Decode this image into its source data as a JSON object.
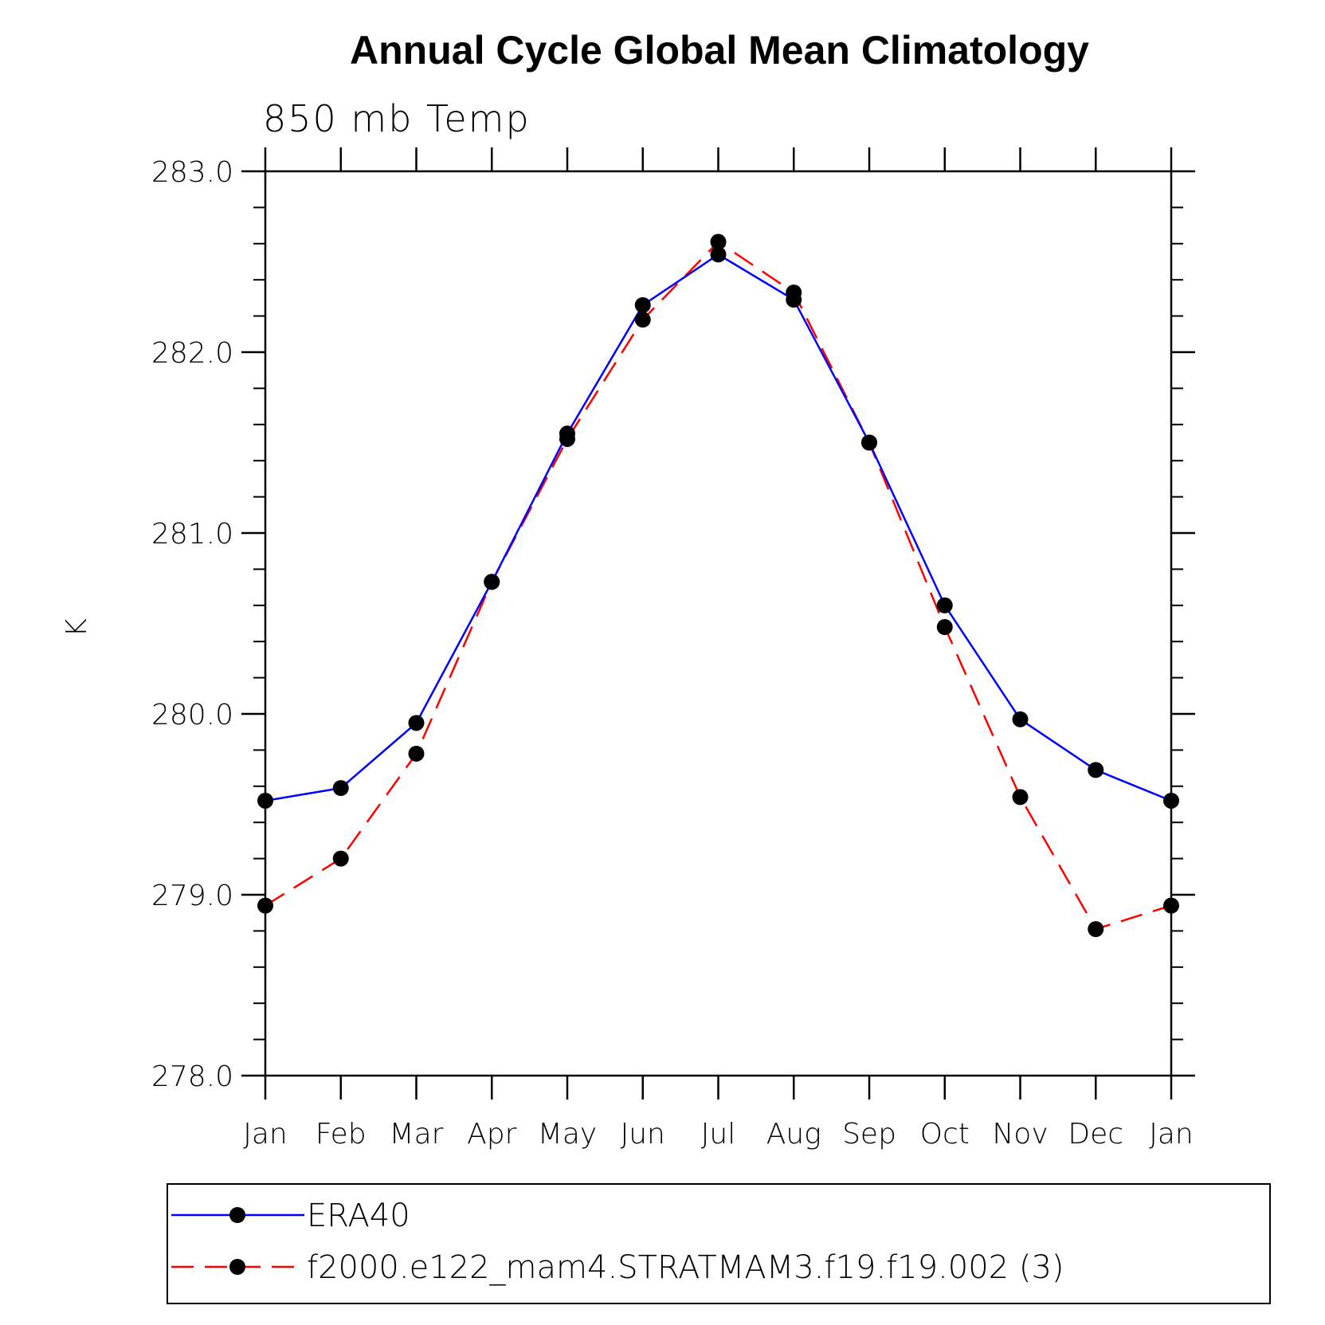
{
  "chart_data": {
    "type": "line",
    "title": "Annual Cycle Global Mean Climatology",
    "subtitle": "850 mb Temp",
    "ylabel": "K",
    "xlabel": "",
    "categories": [
      "Jan",
      "Feb",
      "Mar",
      "Apr",
      "May",
      "Jun",
      "Jul",
      "Aug",
      "Sep",
      "Oct",
      "Nov",
      "Dec",
      "Jan"
    ],
    "ylim": [
      278.0,
      283.0
    ],
    "yticks": [
      "278.0",
      "279.0",
      "280.0",
      "281.0",
      "282.0",
      "283.0"
    ],
    "legend": "bottom",
    "series": [
      {
        "name": "ERA40",
        "color": "#0000ff",
        "dash": "solid",
        "values": [
          279.52,
          279.59,
          279.95,
          280.73,
          281.55,
          282.26,
          282.54,
          282.29,
          281.5,
          280.6,
          279.97,
          279.69,
          279.52
        ]
      },
      {
        "name": "f2000.e122_mam4.STRATMAM3.f19.f19.002 (3)",
        "color": "#ff0000",
        "dash": "dashed",
        "values": [
          278.94,
          279.2,
          279.78,
          280.73,
          281.52,
          282.18,
          282.61,
          282.33,
          281.5,
          280.48,
          279.54,
          278.81,
          278.94
        ]
      }
    ]
  }
}
